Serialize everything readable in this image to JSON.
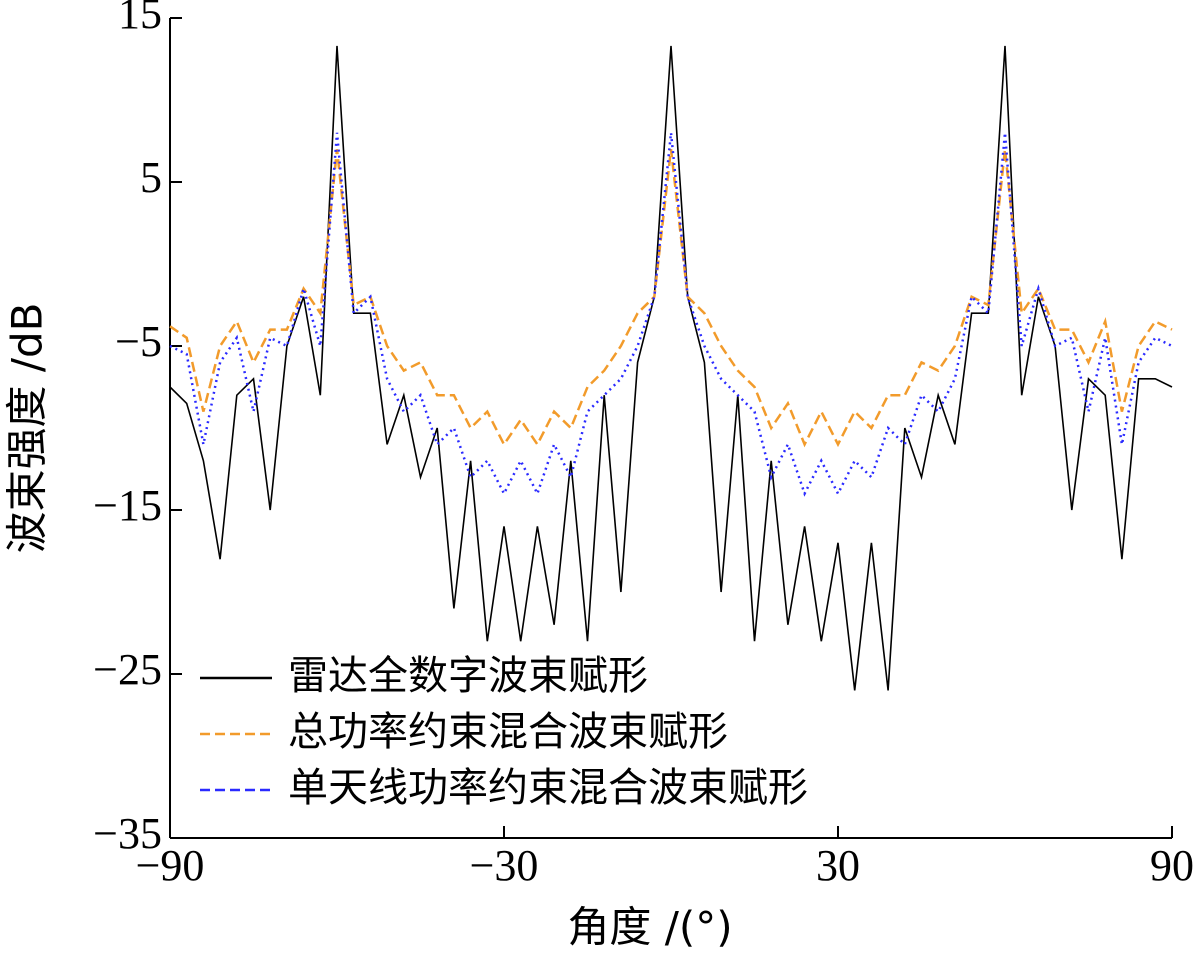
{
  "chart_data": {
    "type": "line",
    "xlabel": "角度 /(°)",
    "ylabel": "波束强度 /dB",
    "x": [
      -90,
      -87,
      -84,
      -81,
      -78,
      -75,
      -72,
      -69,
      -66,
      -63,
      -60,
      -57,
      -54,
      -51,
      -48,
      -45,
      -42,
      -39,
      -36,
      -33,
      -30,
      -27,
      -24,
      -21,
      -18,
      -15,
      -12,
      -9,
      -6,
      -3,
      0,
      3,
      6,
      9,
      12,
      15,
      18,
      21,
      24,
      27,
      30,
      33,
      36,
      39,
      42,
      45,
      48,
      51,
      54,
      57,
      60,
      63,
      66,
      69,
      72,
      75,
      78,
      81,
      84,
      87,
      90
    ],
    "series": [
      {
        "name": "雷达全数字波束赋形",
        "color": "#000000",
        "style": "solid",
        "values": [
          -7.5,
          -8.5,
          -12,
          -18,
          -8,
          -7,
          -15,
          -5,
          -2,
          -8,
          13.3,
          -3,
          -3,
          -11,
          -8,
          -13,
          -10,
          -21,
          -12,
          -23,
          -16,
          -23,
          -16,
          -22,
          -12,
          -23,
          -8,
          -20,
          -6,
          -2,
          13.3,
          -2,
          -6,
          -20,
          -8,
          -23,
          -12,
          -22,
          -16,
          -23,
          -17,
          -26,
          -17,
          -26,
          -10,
          -13,
          -8,
          -11,
          -3,
          -3,
          13.3,
          -8,
          -2,
          -5,
          -15,
          -7,
          -8,
          -18,
          -7,
          -7,
          -7.5
        ]
      },
      {
        "name": "总功率约束混合波束赋形",
        "color": "#f29b2b",
        "style": "dashed",
        "values": [
          -3.8,
          -4.5,
          -9,
          -5,
          -3.5,
          -6,
          -4,
          -4,
          -1.5,
          -3,
          7,
          -2.5,
          -2,
          -5,
          -6.5,
          -6,
          -8,
          -8,
          -10,
          -9,
          -11,
          -9.5,
          -11,
          -9,
          -10,
          -7.5,
          -6.5,
          -5,
          -3,
          -2,
          7,
          -2,
          -3,
          -5,
          -6.5,
          -7.5,
          -10,
          -8.5,
          -11,
          -9,
          -11,
          -9,
          -10,
          -8,
          -8,
          -6,
          -6.5,
          -5,
          -2,
          -2.5,
          7,
          -3,
          -1.5,
          -4,
          -4,
          -6,
          -3.5,
          -9,
          -5,
          -3.5,
          -4
        ]
      },
      {
        "name": "单天线功率约束混合波束赋形",
        "color": "#2a2aff",
        "style": "dotted",
        "values": [
          -5,
          -5.5,
          -11,
          -6,
          -4.5,
          -9,
          -4.5,
          -5,
          -1.5,
          -5,
          8,
          -3,
          -2,
          -7,
          -9,
          -8,
          -11,
          -10,
          -13,
          -12,
          -14,
          -12,
          -14,
          -11,
          -13,
          -9,
          -8,
          -7,
          -5,
          -2,
          8,
          -2,
          -5,
          -7,
          -8,
          -9,
          -13,
          -11,
          -14,
          -12,
          -14,
          -12,
          -13,
          -10,
          -11,
          -8,
          -9,
          -7,
          -2,
          -3,
          8,
          -5,
          -1.5,
          -5,
          -4.5,
          -9,
          -4.5,
          -11,
          -6,
          -4.5,
          -5
        ]
      }
    ],
    "xlim": [
      -90,
      90
    ],
    "xticks": [
      {
        "value": -90,
        "label": "−90"
      },
      {
        "value": -30,
        "label": "−30"
      },
      30,
      90
    ],
    "ylim": [
      -35,
      15
    ],
    "yticks": [
      {
        "value": -35,
        "label": "−35"
      },
      {
        "value": -25,
        "label": "−25"
      },
      {
        "value": -15,
        "label": "−15"
      },
      {
        "value": -5,
        "label": "−5"
      },
      5,
      15
    ],
    "legend": "lower left"
  }
}
